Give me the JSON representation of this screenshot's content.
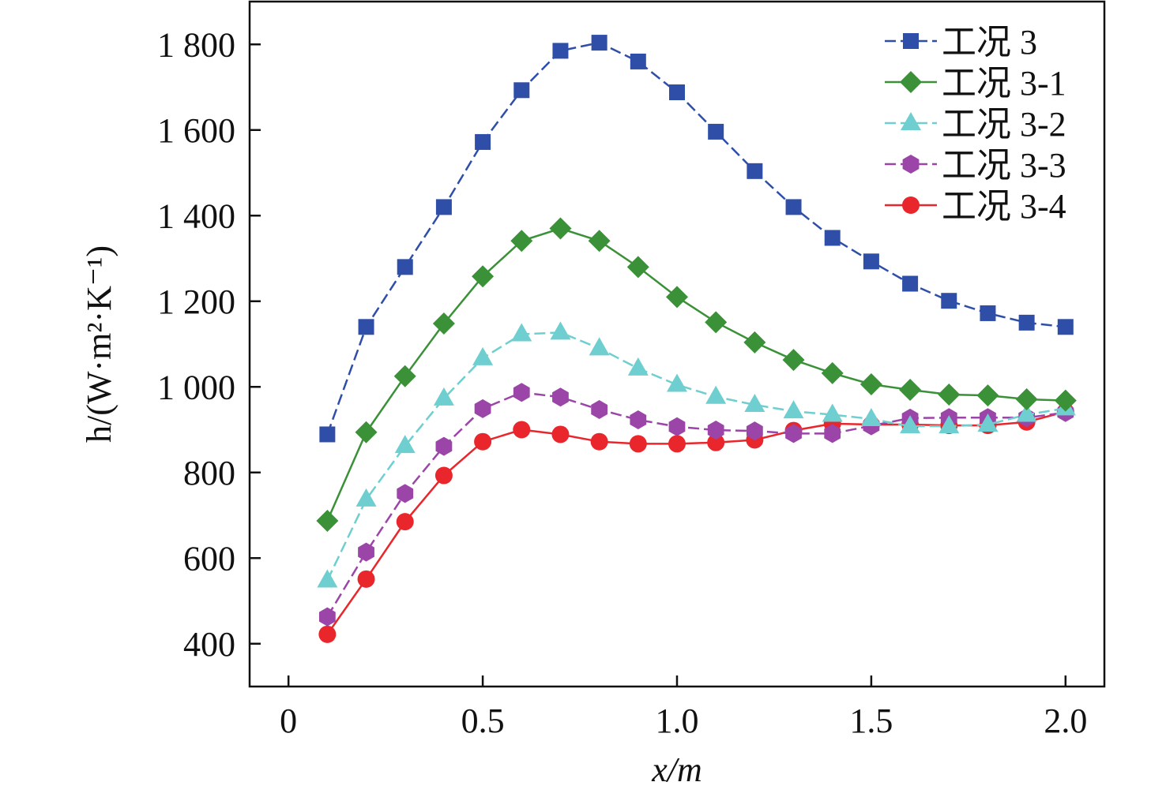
{
  "chart_data": {
    "type": "line",
    "title": "",
    "xlabel": "x/m",
    "ylabel": "h/(W·m²·K⁻¹)",
    "xlim": [
      -0.1,
      2.1
    ],
    "ylim": [
      300,
      1900
    ],
    "xticks": [
      0,
      0.5,
      1.0,
      1.5,
      2.0
    ],
    "xtick_labels": [
      "0",
      "0.5",
      "1.0",
      "1.5",
      "2.0"
    ],
    "yticks": [
      400,
      600,
      800,
      1000,
      1200,
      1400,
      1600,
      1800
    ],
    "ytick_labels": [
      "400",
      "600",
      "800",
      "1 000",
      "1 200",
      "1 400",
      "1 600",
      "1 800"
    ],
    "legend_position": "top-right",
    "x": [
      0.1,
      0.2,
      0.3,
      0.4,
      0.5,
      0.6,
      0.7,
      0.8,
      0.9,
      1.0,
      1.1,
      1.2,
      1.3,
      1.4,
      1.5,
      1.6,
      1.7,
      1.8,
      1.9,
      2.0
    ],
    "series": [
      {
        "name": "工况 3",
        "color": "#2f4ea8",
        "marker": "square",
        "dash": true,
        "values": [
          889,
          1140,
          1280,
          1420,
          1572,
          1693,
          1785,
          1804,
          1760,
          1688,
          1596,
          1504,
          1420,
          1348,
          1293,
          1241,
          1201,
          1172,
          1150,
          1140
        ]
      },
      {
        "name": "工况 3-1",
        "color": "#3a9138",
        "marker": "diamond",
        "dash": false,
        "values": [
          687,
          894,
          1025,
          1148,
          1258,
          1341,
          1370,
          1341,
          1280,
          1210,
          1151,
          1104,
          1063,
          1032,
          1006,
          993,
          982,
          980,
          971,
          968
        ]
      },
      {
        "name": "工况 3-2",
        "color": "#6fcfd0",
        "marker": "triangle",
        "dash": true,
        "values": [
          548,
          737,
          862,
          973,
          1067,
          1123,
          1127,
          1090,
          1043,
          1005,
          977,
          958,
          943,
          935,
          925,
          908,
          908,
          912,
          935,
          950
        ]
      },
      {
        "name": "工况 3-3",
        "color": "#9b45a8",
        "marker": "hexagon",
        "dash": true,
        "values": [
          463,
          614,
          751,
          861,
          949,
          987,
          976,
          947,
          923,
          907,
          899,
          897,
          891,
          891,
          909,
          927,
          928,
          928,
          928,
          940
        ]
      },
      {
        "name": "工况 3-4",
        "color": "#e8262b",
        "marker": "circle",
        "dash": false,
        "values": [
          422,
          551,
          685,
          793,
          872,
          900,
          889,
          872,
          867,
          867,
          870,
          876,
          898,
          914,
          912,
          912,
          910,
          910,
          918,
          942
        ]
      }
    ]
  }
}
